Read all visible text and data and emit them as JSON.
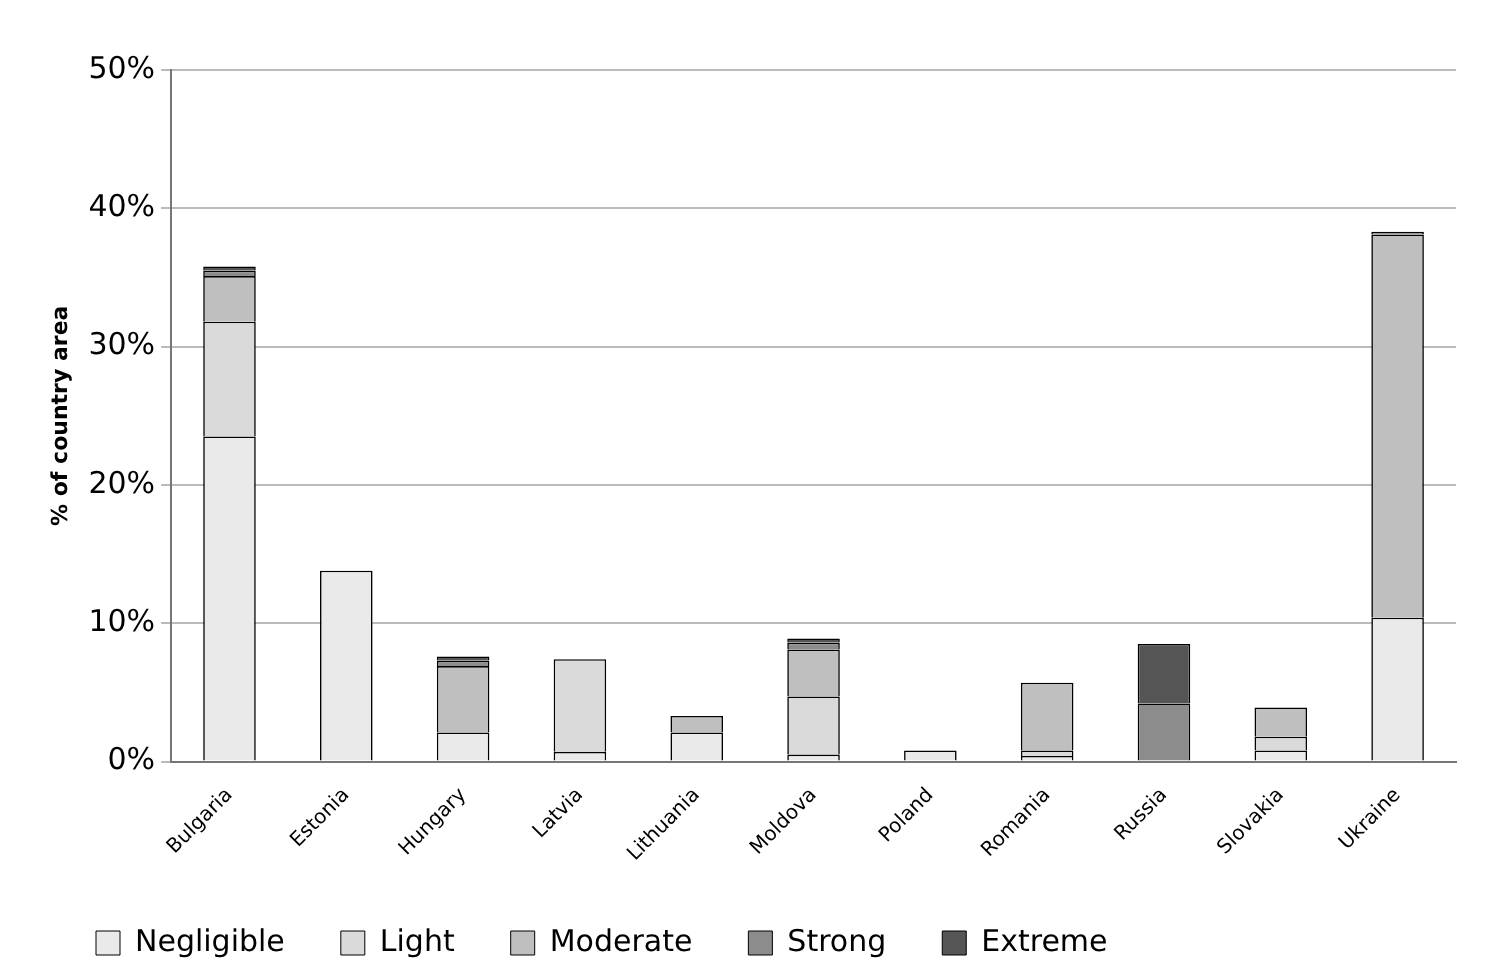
{
  "chart_data": {
    "type": "bar",
    "stacked": true,
    "ylabel": "% of country area",
    "categories": [
      "Bulgaria",
      "Estonia",
      "Hungary",
      "Latvia",
      "Lithuania",
      "Moldova",
      "Poland",
      "Romania",
      "Russia",
      "Slovakia",
      "Ukraine"
    ],
    "series": [
      {
        "name": "Negligible",
        "color": "#eaeaea",
        "values": [
          23.5,
          13.8,
          2.1,
          0.7,
          2.1,
          0.5,
          0.8,
          0.4,
          0,
          0.8,
          10.4
        ]
      },
      {
        "name": "Light",
        "color": "#dadada",
        "values": [
          8.3,
          0,
          0,
          6.7,
          0,
          4.2,
          0,
          0.4,
          0,
          1.0,
          0
        ]
      },
      {
        "name": "Moderate",
        "color": "#bfbfbf",
        "values": [
          3.3,
          0,
          4.8,
          0,
          1.2,
          3.4,
          0,
          4.9,
          0,
          2.1,
          27.7
        ]
      },
      {
        "name": "Strong",
        "color": "#8c8c8c",
        "values": [
          0.4,
          0,
          0.4,
          0,
          0,
          0.5,
          0,
          0,
          4.2,
          0,
          0.2
        ]
      },
      {
        "name": "Extreme",
        "color": "#555555",
        "values": [
          0.3,
          0,
          0.3,
          0,
          0,
          0.3,
          0,
          0,
          4.3,
          0,
          0
        ]
      }
    ],
    "ylim": [
      0,
      50
    ],
    "yticks": [
      {
        "value": 0,
        "label": "0%"
      },
      {
        "value": 10,
        "label": "10%"
      },
      {
        "value": 20,
        "label": "20%"
      },
      {
        "value": 30,
        "label": "30%"
      },
      {
        "value": 40,
        "label": "40%"
      },
      {
        "value": 50,
        "label": "50%"
      }
    ],
    "grid": "y",
    "legend": "bottom"
  }
}
